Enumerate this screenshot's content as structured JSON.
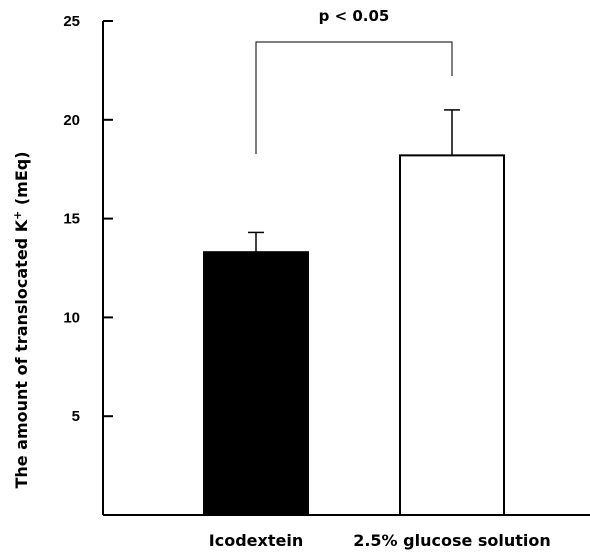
{
  "chart_data": {
    "type": "bar",
    "categories": [
      "Icodextein",
      "2.5% glucose solution"
    ],
    "values": [
      13.3,
      18.2
    ],
    "error_upper": [
      14.3,
      20.5
    ],
    "bar_fill": [
      "#000000",
      "#ffffff"
    ],
    "bar_stroke": "#000000",
    "title": "",
    "xlabel": "",
    "ylabel": "The amount of translocated K",
    "ylabel_superscript": "+",
    "ylabel_suffix": " (mEq)",
    "ylim": [
      0,
      25
    ],
    "yticks": [
      5,
      10,
      15,
      20,
      25
    ],
    "grid": false,
    "legend": "none",
    "annotation": {
      "text": "p < 0.05",
      "between": [
        0,
        1
      ]
    }
  }
}
